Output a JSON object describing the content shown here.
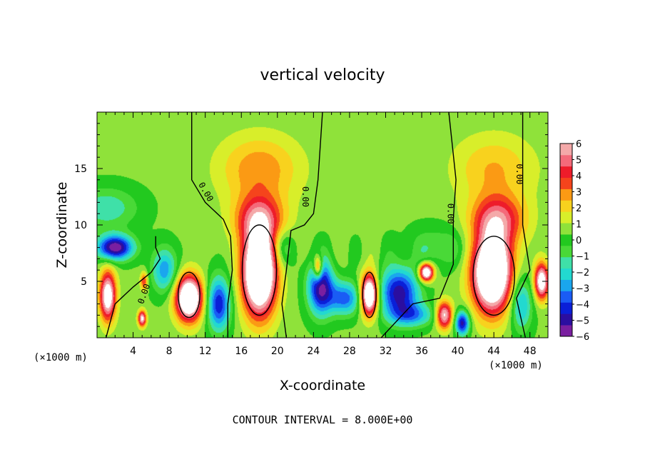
{
  "chart_data": {
    "type": "heatmap",
    "title": "vertical velocity",
    "xlabel": "X-coordinate",
    "ylabel": "Z-coordinate",
    "x_unit": "(×1000 m)",
    "x_unit_right": "(×1000 m)",
    "footnote": "CONTOUR INTERVAL = 8.000E+00",
    "xlim": [
      0,
      50
    ],
    "ylim": [
      0,
      20
    ],
    "x_ticks": [
      4,
      8,
      12,
      16,
      20,
      24,
      28,
      32,
      36,
      40,
      44,
      48
    ],
    "y_ticks": [
      5,
      10,
      15
    ],
    "contour_label": "0.00",
    "colorbar": {
      "min": -6,
      "max": 6,
      "ticks": [
        6,
        5,
        4,
        3,
        2,
        1,
        0,
        -1,
        -2,
        -3,
        -4,
        -5,
        -6
      ],
      "colors": [
        "#7a1fa0",
        "#2b0ea0",
        "#0a1fd8",
        "#1a5cf5",
        "#1aa6ee",
        "#22d9d0",
        "#3fe0a8",
        "#49d937",
        "#22c91f",
        "#8fe23a",
        "#d8ee2a",
        "#f8d21e",
        "#fb9a14",
        "#f5441c",
        "#ee1c2a",
        "#f46a7a",
        "#f4a9a9"
      ]
    },
    "features": [
      {
        "kind": "updraft",
        "x": 18,
        "z": 5.5,
        "peak": 6,
        "top_km": 12
      },
      {
        "kind": "updraft",
        "x": 44,
        "z": 5.5,
        "peak": 6,
        "top_km": 12
      },
      {
        "kind": "updraft",
        "x": 10,
        "z": 3.5,
        "peak": 6
      },
      {
        "kind": "updraft",
        "x": 30,
        "z": 3.8,
        "peak": 6
      },
      {
        "kind": "updraft",
        "x": 5,
        "z": 1.7,
        "peak": 5
      },
      {
        "kind": "updraft",
        "x": 38.5,
        "z": 2,
        "peak": 5
      },
      {
        "kind": "downdraft",
        "x": 2,
        "z": 7.5,
        "peak": -5
      },
      {
        "kind": "downdraft",
        "x": 25,
        "z": 4,
        "peak": -5
      },
      {
        "kind": "downdraft",
        "x": 40.5,
        "z": 1.5,
        "peak": -5
      }
    ]
  }
}
